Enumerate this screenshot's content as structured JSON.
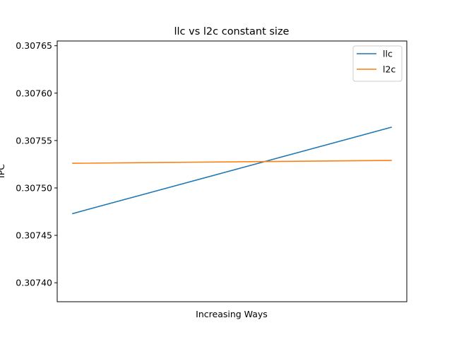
{
  "chart_data": {
    "type": "line",
    "title": "llc vs l2c constant size",
    "xlabel": "Increasing Ways",
    "ylabel": "IPC",
    "x": [
      0,
      1
    ],
    "ylim": [
      0.30738,
      0.307655
    ],
    "yticks": [
      0.3074,
      0.30745,
      0.3075,
      0.30755,
      0.3076,
      0.30765
    ],
    "ytick_labels": [
      "0.30740",
      "0.30745",
      "0.30750",
      "0.30755",
      "0.30760",
      "0.30765"
    ],
    "grid": false,
    "legend": "top-right",
    "series": [
      {
        "name": "llc",
        "color": "#1f77b4",
        "values": [
          0.307473,
          0.307564
        ]
      },
      {
        "name": "l2c",
        "color": "#ff7f0e",
        "values": [
          0.307526,
          0.307529
        ]
      }
    ]
  }
}
